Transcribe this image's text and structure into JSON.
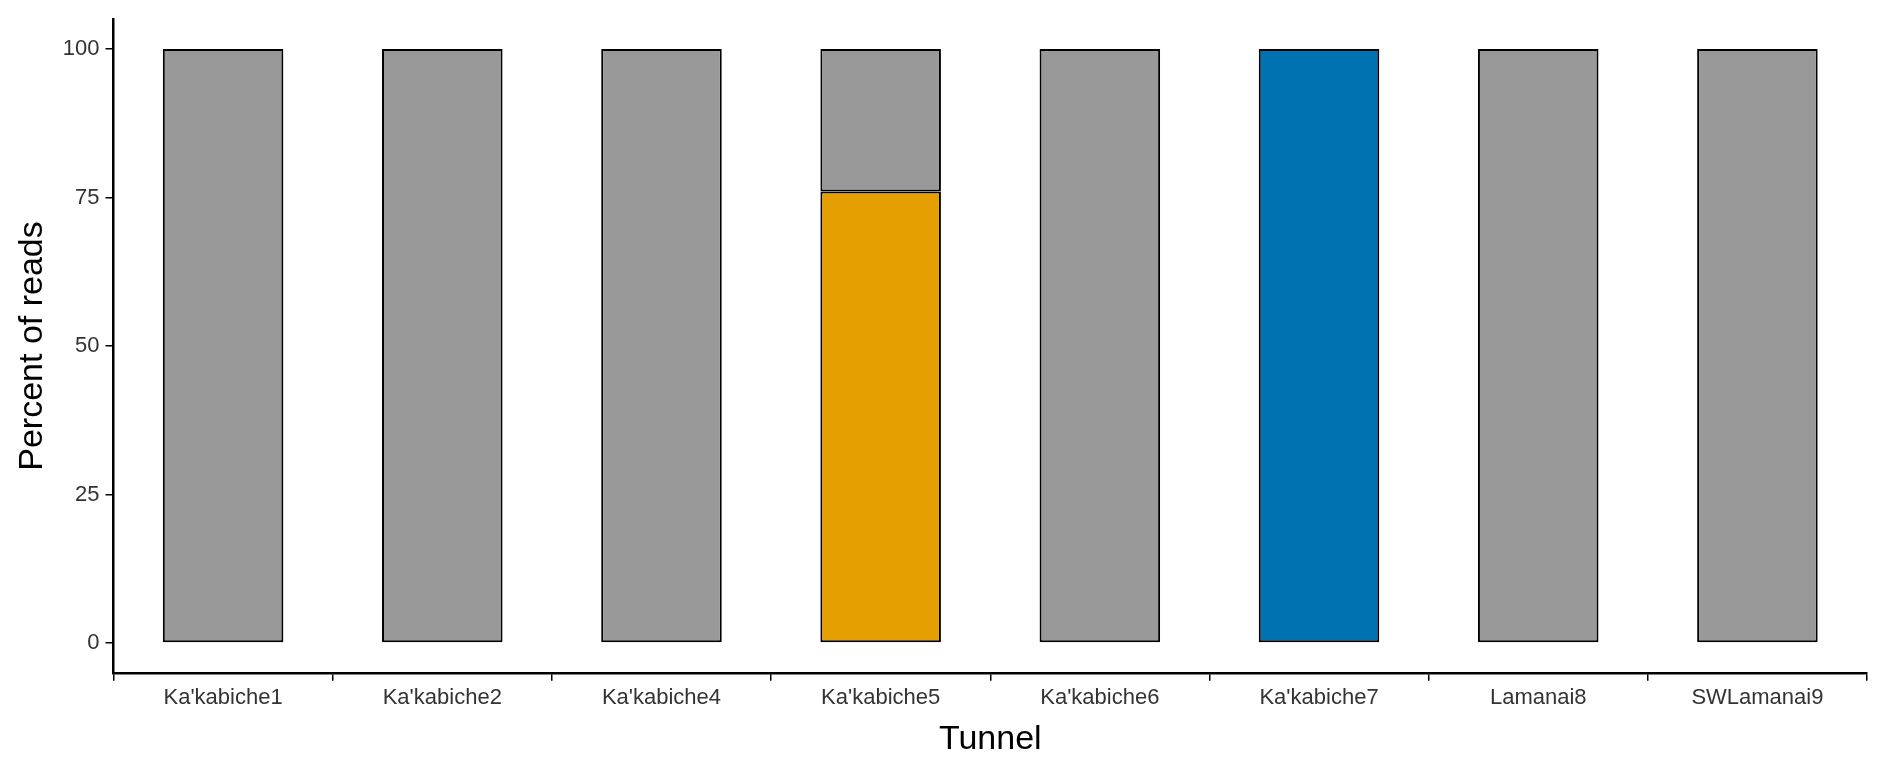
{
  "chart_data": {
    "type": "bar",
    "xlabel": "Tunnel",
    "ylabel": "Percent of reads",
    "categories": [
      "Ka'kabiche1",
      "Ka'kabiche2",
      "Ka'kabiche4",
      "Ka'kabiche5",
      "Ka'kabiche6",
      "Ka'kabiche7",
      "Lamanai8",
      "SWLamanai9"
    ],
    "stacked": true,
    "series": [
      {
        "color": "#e69f00",
        "values": [
          null,
          null,
          null,
          76,
          null,
          null,
          null,
          null
        ]
      },
      {
        "color": "#0072b2",
        "values": [
          null,
          null,
          null,
          null,
          null,
          100,
          null,
          null
        ]
      },
      {
        "color": "#999999",
        "values": [
          100,
          100,
          100,
          24,
          100,
          null,
          100,
          100
        ]
      }
    ],
    "ylim": [
      -5,
      105
    ],
    "yticks": [
      0,
      25,
      50,
      75,
      100
    ],
    "grid": false,
    "legend": false
  }
}
